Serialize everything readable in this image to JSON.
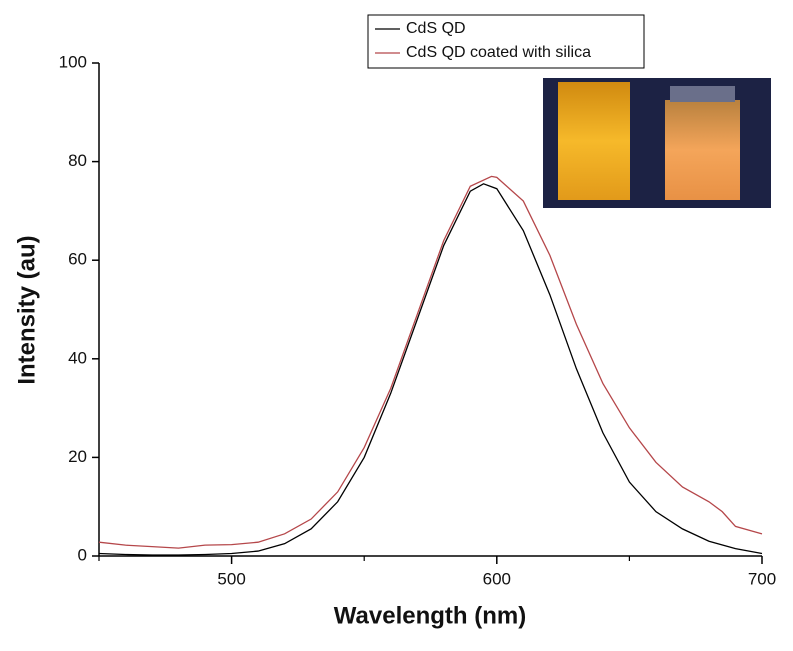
{
  "chart_data": {
    "type": "line",
    "x_label": "Wavelength (nm)",
    "y_label": "Intensity (au)",
    "xlim": [
      450,
      700
    ],
    "ylim": [
      0,
      100
    ],
    "xticks": [
      500,
      600,
      700
    ],
    "xminorticks": [
      450,
      550,
      650
    ],
    "yticks": [
      0,
      20,
      40,
      60,
      80,
      100
    ],
    "series": [
      {
        "name": "CdS QD",
        "color": "#000000",
        "x": [
          450,
          460,
          470,
          480,
          490,
          500,
          510,
          520,
          530,
          540,
          550,
          560,
          570,
          580,
          590,
          595,
          600,
          610,
          620,
          630,
          640,
          650,
          660,
          670,
          680,
          690,
          700
        ],
        "values": [
          0.5,
          0.3,
          0.2,
          0.2,
          0.3,
          0.5,
          1,
          2.5,
          5.5,
          11,
          20,
          33,
          48,
          63,
          74,
          75.5,
          74.5,
          66,
          53,
          38,
          25,
          15,
          9,
          5.5,
          3,
          1.5,
          0.5
        ]
      },
      {
        "name": "CdS QD coated with silica",
        "color": "#b5474a",
        "x": [
          450,
          460,
          470,
          480,
          490,
          500,
          510,
          520,
          530,
          540,
          550,
          560,
          570,
          580,
          590,
          598,
          600,
          610,
          620,
          630,
          640,
          650,
          660,
          670,
          680,
          685,
          690,
          700
        ],
        "values": [
          2.8,
          2.2,
          1.9,
          1.6,
          2.2,
          2.3,
          2.8,
          4.5,
          7.5,
          13,
          22,
          34,
          49,
          64,
          75,
          77,
          76.8,
          72,
          61,
          47,
          35,
          26,
          19,
          14,
          11,
          9,
          6,
          4.5
        ]
      }
    ],
    "legend": "top-center"
  }
}
